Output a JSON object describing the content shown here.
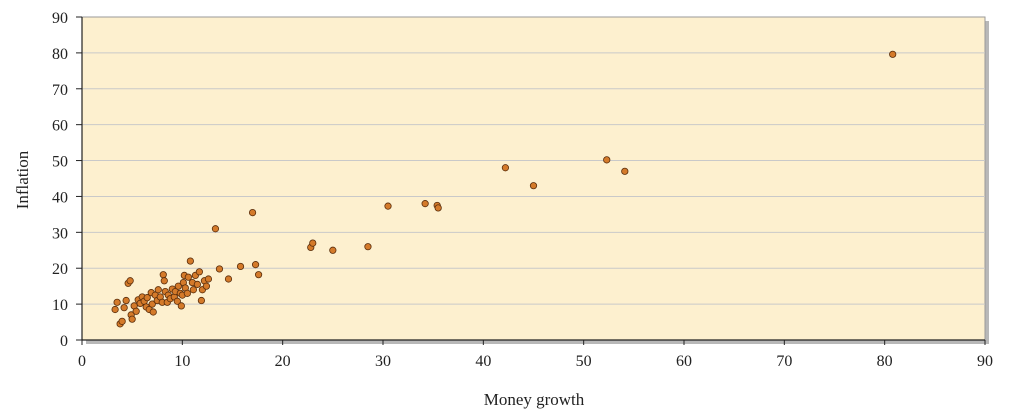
{
  "chart_data": {
    "type": "scatter",
    "title": "",
    "xlabel": "Money growth",
    "ylabel": "Inflation",
    "xlim": [
      0,
      90
    ],
    "ylim": [
      0,
      90
    ],
    "xticks": [
      "0",
      "10",
      "20",
      "30",
      "40",
      "50",
      "60",
      "70",
      "80",
      "90"
    ],
    "yticks": [
      "0",
      "10",
      "20",
      "30",
      "40",
      "50",
      "60",
      "70",
      "80",
      "90"
    ],
    "grid": "horizontal",
    "colors": {
      "plot_background": "#fdf0cf",
      "marker_fill": "#d47a2a",
      "marker_edge": "#5a2e0c",
      "grid": "#c9c9c9"
    },
    "points": [
      [
        3.3,
        8.5
      ],
      [
        3.5,
        10.5
      ],
      [
        3.8,
        4.5
      ],
      [
        4.0,
        5.2
      ],
      [
        4.2,
        9.0
      ],
      [
        4.4,
        11.0
      ],
      [
        4.6,
        15.8
      ],
      [
        4.8,
        16.5
      ],
      [
        4.9,
        7.0
      ],
      [
        5.0,
        5.8
      ],
      [
        5.2,
        9.5
      ],
      [
        5.4,
        8.0
      ],
      [
        5.6,
        11.2
      ],
      [
        5.8,
        10.2
      ],
      [
        6.0,
        12.0
      ],
      [
        6.2,
        10.8
      ],
      [
        6.4,
        9.2
      ],
      [
        6.5,
        11.8
      ],
      [
        6.7,
        8.5
      ],
      [
        6.9,
        13.2
      ],
      [
        7.0,
        10.0
      ],
      [
        7.1,
        7.8
      ],
      [
        7.3,
        12.5
      ],
      [
        7.5,
        11.0
      ],
      [
        7.6,
        14.0
      ],
      [
        7.8,
        12.0
      ],
      [
        8.0,
        10.5
      ],
      [
        8.1,
        18.2
      ],
      [
        8.2,
        16.5
      ],
      [
        8.3,
        13.5
      ],
      [
        8.5,
        10.5
      ],
      [
        8.6,
        12.5
      ],
      [
        8.8,
        11.5
      ],
      [
        9.0,
        14.2
      ],
      [
        9.2,
        12.0
      ],
      [
        9.3,
        13.5
      ],
      [
        9.5,
        10.8
      ],
      [
        9.6,
        15.0
      ],
      [
        9.8,
        13.0
      ],
      [
        9.9,
        9.5
      ],
      [
        10.0,
        12.5
      ],
      [
        10.1,
        16.0
      ],
      [
        10.2,
        18.0
      ],
      [
        10.3,
        14.5
      ],
      [
        10.5,
        13.0
      ],
      [
        10.6,
        17.5
      ],
      [
        10.8,
        22.0
      ],
      [
        11.0,
        16.0
      ],
      [
        11.1,
        14.0
      ],
      [
        11.3,
        18.0
      ],
      [
        11.5,
        15.5
      ],
      [
        11.7,
        19.0
      ],
      [
        11.9,
        11.0
      ],
      [
        12.0,
        14.0
      ],
      [
        12.2,
        16.5
      ],
      [
        12.4,
        15.0
      ],
      [
        12.6,
        17.0
      ],
      [
        13.3,
        31.0
      ],
      [
        13.7,
        19.8
      ],
      [
        14.6,
        17.0
      ],
      [
        15.8,
        20.5
      ],
      [
        17.0,
        35.5
      ],
      [
        17.3,
        21.0
      ],
      [
        17.6,
        18.2
      ],
      [
        22.8,
        25.8
      ],
      [
        23.0,
        27.0
      ],
      [
        25.0,
        25.0
      ],
      [
        28.5,
        26.0
      ],
      [
        30.5,
        37.3
      ],
      [
        34.2,
        38.0
      ],
      [
        35.4,
        37.5
      ],
      [
        35.5,
        36.8
      ],
      [
        42.2,
        48.0
      ],
      [
        45.0,
        43.0
      ],
      [
        52.3,
        50.2
      ],
      [
        54.1,
        47.0
      ],
      [
        80.8,
        79.6
      ]
    ]
  }
}
